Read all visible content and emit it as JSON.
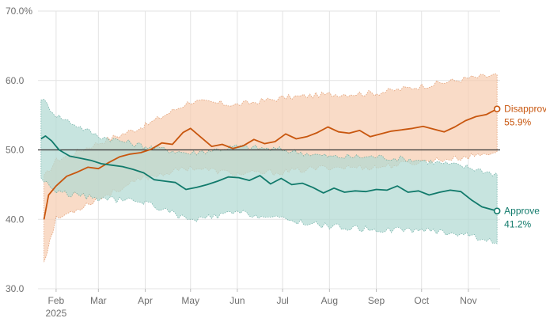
{
  "chart_data": {
    "type": "line",
    "title": "",
    "xlabel": "",
    "ylabel": "",
    "ylim": [
      30,
      70
    ],
    "y_ticks": [
      "70.0%",
      "60.0",
      "50.0",
      "40.0",
      "30.0"
    ],
    "y_tick_values": [
      70,
      60,
      50,
      40,
      30
    ],
    "x_ticks": [
      "Feb",
      "Mar",
      "Apr",
      "May",
      "Jun",
      "Jul",
      "Aug",
      "Sep",
      "Oct",
      "Nov"
    ],
    "x_tick_dates": [
      "2025-02-01",
      "2025-03-01",
      "2025-04-01",
      "2025-05-01",
      "2025-06-01",
      "2025-07-01",
      "2025-08-01",
      "2025-09-01",
      "2025-10-01",
      "2025-11-01"
    ],
    "x_year_label": "2025",
    "x_range": [
      "2025-01-20",
      "2025-11-22"
    ],
    "reference_line": 50,
    "grid": true,
    "colors": {
      "disapprove": "#c8560e",
      "disapprove_band": "#f7cdb2",
      "approve": "#117a6b",
      "approve_band": "#b2d9d2"
    },
    "series": [
      {
        "name": "Disapprove",
        "end_label": "55.9%",
        "points": [
          [
            "2025-01-24",
            40.0
          ],
          [
            "2025-01-27",
            43.5
          ],
          [
            "2025-02-01",
            44.8
          ],
          [
            "2025-02-08",
            46.2
          ],
          [
            "2025-02-15",
            46.8
          ],
          [
            "2025-02-22",
            47.5
          ],
          [
            "2025-03-01",
            47.3
          ],
          [
            "2025-03-08",
            48.2
          ],
          [
            "2025-03-15",
            49.0
          ],
          [
            "2025-03-22",
            49.4
          ],
          [
            "2025-03-29",
            49.6
          ],
          [
            "2025-04-05",
            50.1
          ],
          [
            "2025-04-12",
            51.0
          ],
          [
            "2025-04-19",
            50.8
          ],
          [
            "2025-04-26",
            52.5
          ],
          [
            "2025-05-01",
            53.1
          ],
          [
            "2025-05-08",
            51.8
          ],
          [
            "2025-05-15",
            50.5
          ],
          [
            "2025-05-22",
            50.8
          ],
          [
            "2025-05-29",
            50.2
          ],
          [
            "2025-06-05",
            50.6
          ],
          [
            "2025-06-12",
            51.5
          ],
          [
            "2025-06-19",
            50.9
          ],
          [
            "2025-06-26",
            51.2
          ],
          [
            "2025-07-03",
            52.3
          ],
          [
            "2025-07-10",
            51.6
          ],
          [
            "2025-07-17",
            51.9
          ],
          [
            "2025-07-24",
            52.5
          ],
          [
            "2025-07-31",
            53.3
          ],
          [
            "2025-08-07",
            52.6
          ],
          [
            "2025-08-14",
            52.4
          ],
          [
            "2025-08-21",
            52.8
          ],
          [
            "2025-08-28",
            51.9
          ],
          [
            "2025-09-04",
            52.3
          ],
          [
            "2025-09-11",
            52.7
          ],
          [
            "2025-09-18",
            52.9
          ],
          [
            "2025-09-25",
            53.1
          ],
          [
            "2025-10-02",
            53.4
          ],
          [
            "2025-10-09",
            53.0
          ],
          [
            "2025-10-16",
            52.6
          ],
          [
            "2025-10-23",
            53.3
          ],
          [
            "2025-10-30",
            54.2
          ],
          [
            "2025-11-06",
            54.8
          ],
          [
            "2025-11-13",
            55.1
          ],
          [
            "2025-11-20",
            55.9
          ]
        ],
        "band_upper": [
          [
            "2025-01-24",
            46.0
          ],
          [
            "2025-02-01",
            48.5
          ],
          [
            "2025-03-01",
            51.0
          ],
          [
            "2025-04-01",
            53.5
          ],
          [
            "2025-05-01",
            57.0
          ],
          [
            "2025-06-01",
            56.5
          ],
          [
            "2025-07-01",
            57.5
          ],
          [
            "2025-08-01",
            58.0
          ],
          [
            "2025-09-01",
            58.2
          ],
          [
            "2025-10-01",
            59.2
          ],
          [
            "2025-11-01",
            60.3
          ],
          [
            "2025-11-20",
            60.8
          ]
        ],
        "band_lower": [
          [
            "2025-01-24",
            34.0
          ],
          [
            "2025-02-01",
            40.0
          ],
          [
            "2025-03-01",
            43.0
          ],
          [
            "2025-04-01",
            46.0
          ],
          [
            "2025-05-01",
            47.5
          ],
          [
            "2025-06-01",
            46.5
          ],
          [
            "2025-07-01",
            46.8
          ],
          [
            "2025-08-01",
            47.5
          ],
          [
            "2025-09-01",
            47.5
          ],
          [
            "2025-10-01",
            48.3
          ],
          [
            "2025-11-01",
            49.0
          ],
          [
            "2025-11-20",
            49.8
          ]
        ]
      },
      {
        "name": "Approve",
        "end_label": "41.2%",
        "points": [
          [
            "2025-01-22",
            51.6
          ],
          [
            "2025-01-25",
            52.0
          ],
          [
            "2025-01-29",
            51.3
          ],
          [
            "2025-02-03",
            50.0
          ],
          [
            "2025-02-10",
            49.1
          ],
          [
            "2025-02-17",
            48.8
          ],
          [
            "2025-02-24",
            48.5
          ],
          [
            "2025-03-03",
            48.0
          ],
          [
            "2025-03-10",
            47.8
          ],
          [
            "2025-03-17",
            47.6
          ],
          [
            "2025-03-24",
            47.2
          ],
          [
            "2025-03-31",
            46.7
          ],
          [
            "2025-04-07",
            45.7
          ],
          [
            "2025-04-14",
            45.5
          ],
          [
            "2025-04-21",
            45.3
          ],
          [
            "2025-04-28",
            44.3
          ],
          [
            "2025-05-05",
            44.6
          ],
          [
            "2025-05-12",
            45.0
          ],
          [
            "2025-05-19",
            45.5
          ],
          [
            "2025-05-26",
            46.1
          ],
          [
            "2025-06-02",
            46.0
          ],
          [
            "2025-06-09",
            45.6
          ],
          [
            "2025-06-16",
            46.3
          ],
          [
            "2025-06-23",
            45.1
          ],
          [
            "2025-06-30",
            45.9
          ],
          [
            "2025-07-07",
            45.0
          ],
          [
            "2025-07-14",
            45.2
          ],
          [
            "2025-07-21",
            44.6
          ],
          [
            "2025-07-28",
            43.8
          ],
          [
            "2025-08-04",
            44.5
          ],
          [
            "2025-08-11",
            43.9
          ],
          [
            "2025-08-18",
            44.1
          ],
          [
            "2025-08-25",
            44.0
          ],
          [
            "2025-09-01",
            44.3
          ],
          [
            "2025-09-08",
            44.2
          ],
          [
            "2025-09-15",
            44.8
          ],
          [
            "2025-09-22",
            43.9
          ],
          [
            "2025-09-29",
            44.1
          ],
          [
            "2025-10-06",
            43.5
          ],
          [
            "2025-10-13",
            43.9
          ],
          [
            "2025-10-20",
            44.2
          ],
          [
            "2025-10-27",
            44.0
          ],
          [
            "2025-11-03",
            42.8
          ],
          [
            "2025-11-10",
            41.8
          ],
          [
            "2025-11-20",
            41.2
          ]
        ],
        "band_upper": [
          [
            "2025-01-22",
            57.5
          ],
          [
            "2025-02-01",
            55.0
          ],
          [
            "2025-03-01",
            52.0
          ],
          [
            "2025-04-01",
            50.5
          ],
          [
            "2025-05-01",
            49.5
          ],
          [
            "2025-06-01",
            50.5
          ],
          [
            "2025-07-01",
            50.0
          ],
          [
            "2025-08-01",
            49.0
          ],
          [
            "2025-09-01",
            49.0
          ],
          [
            "2025-10-01",
            48.5
          ],
          [
            "2025-11-01",
            47.5
          ],
          [
            "2025-11-20",
            46.5
          ]
        ],
        "band_lower": [
          [
            "2025-01-22",
            46.0
          ],
          [
            "2025-02-01",
            44.0
          ],
          [
            "2025-03-01",
            43.0
          ],
          [
            "2025-04-01",
            42.5
          ],
          [
            "2025-05-01",
            39.8
          ],
          [
            "2025-06-01",
            41.0
          ],
          [
            "2025-07-01",
            40.0
          ],
          [
            "2025-08-01",
            39.0
          ],
          [
            "2025-09-01",
            38.5
          ],
          [
            "2025-10-01",
            38.5
          ],
          [
            "2025-11-01",
            37.8
          ],
          [
            "2025-11-20",
            36.5
          ]
        ]
      }
    ]
  }
}
